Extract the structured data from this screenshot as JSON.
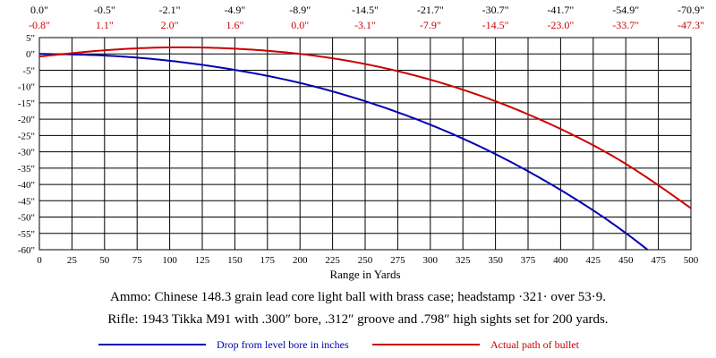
{
  "chart_data": {
    "type": "line",
    "xlabel": "Range in Yards",
    "ylabel": "",
    "xlim": [
      0,
      500
    ],
    "ylim": [
      -60,
      5
    ],
    "x_ticks": [
      0,
      25,
      50,
      75,
      100,
      125,
      150,
      175,
      200,
      225,
      250,
      275,
      300,
      325,
      350,
      375,
      400,
      425,
      450,
      475,
      500
    ],
    "y_tick_values": [
      5,
      0,
      -5,
      -10,
      -15,
      -20,
      -25,
      -30,
      -35,
      -40,
      -45,
      -50,
      -55,
      -60
    ],
    "y_tick_labels": [
      "5\"",
      "0\"",
      "-5\"",
      "-10\"",
      "-15\"",
      "-20\"",
      "-25\"",
      "-30\"",
      "-35\"",
      "-40\"",
      "-45\"",
      "-50\"",
      "-55\"",
      "-60\""
    ],
    "grid": true,
    "top_row_drop": [
      "0.0\"",
      "-0.5\"",
      "-2.1\"",
      "-4.9\"",
      "-8.9\"",
      "-14.5\"",
      "-21.7\"",
      "-30.7\"",
      "-41.7\"",
      "-54.9\"",
      "-70.9\""
    ],
    "top_row_path": [
      "-0.8\"",
      "1.1\"",
      "2.0\"",
      "1.6\"",
      "0.0\"",
      "-3.1\"",
      "-7.9\"",
      "-14.5\"",
      "-23.0\"",
      "-33.7\"",
      "-47.3\""
    ],
    "series": [
      {
        "name": "Drop from level bore in inches",
        "color": "#0000b4",
        "x": [
          0,
          50,
          100,
          150,
          200,
          250,
          300,
          350,
          400,
          450,
          500
        ],
        "values": [
          0.0,
          -0.5,
          -2.1,
          -4.9,
          -8.9,
          -14.5,
          -21.7,
          -30.7,
          -41.7,
          -54.9,
          -70.9
        ]
      },
      {
        "name": "Actual path of bullet",
        "color": "#cc0000",
        "x": [
          0,
          50,
          100,
          150,
          200,
          250,
          300,
          350,
          400,
          450,
          500
        ],
        "values": [
          -0.8,
          1.1,
          2.0,
          1.6,
          0.0,
          -3.1,
          -7.9,
          -14.5,
          -23.0,
          -33.7,
          -47.3
        ]
      }
    ]
  },
  "captions": {
    "ammo": "Ammo:  Chinese 148.3 grain lead core light ball with brass case; headstamp ·321· over 53·9.",
    "rifle": "Rifle:  1943 Tikka M91 with .300″ bore, .312″ groove and .798″ high sights set for 200 yards."
  }
}
